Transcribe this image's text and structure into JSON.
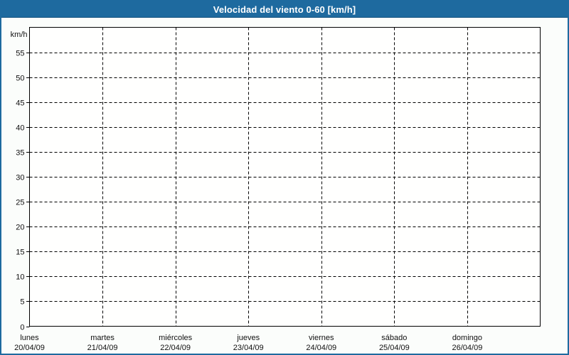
{
  "title": "Velocidad del viento 0-60 [km/h]",
  "colors": {
    "titlebar_bg": "#1e6a9f",
    "titlebar_edge": "#14527e",
    "title_text": "#ffffff",
    "frame_border": "#1e6a9f",
    "page_bg": "#fbfdfb",
    "plot_bg": "#fffffe",
    "axis": "#000000",
    "grid": "#000000",
    "label_text": "#111111"
  },
  "chart_data": {
    "type": "line",
    "title": "Velocidad del viento 0-60 [km/h]",
    "ylabel": "km/h",
    "xlabel": "",
    "ylim": [
      0,
      60
    ],
    "yticks": [
      0,
      5,
      10,
      15,
      20,
      25,
      30,
      35,
      40,
      45,
      50,
      55
    ],
    "grid": "dashed",
    "legend": "none",
    "categories": [
      {
        "day": "lunes",
        "date": "20/04/09"
      },
      {
        "day": "martes",
        "date": "21/04/09"
      },
      {
        "day": "miércoles",
        "date": "22/04/09"
      },
      {
        "day": "jueves",
        "date": "23/04/09"
      },
      {
        "day": "viernes",
        "date": "24/04/09"
      },
      {
        "day": "sábado",
        "date": "25/04/09"
      },
      {
        "day": "domingo",
        "date": "26/04/09"
      }
    ],
    "series": []
  }
}
